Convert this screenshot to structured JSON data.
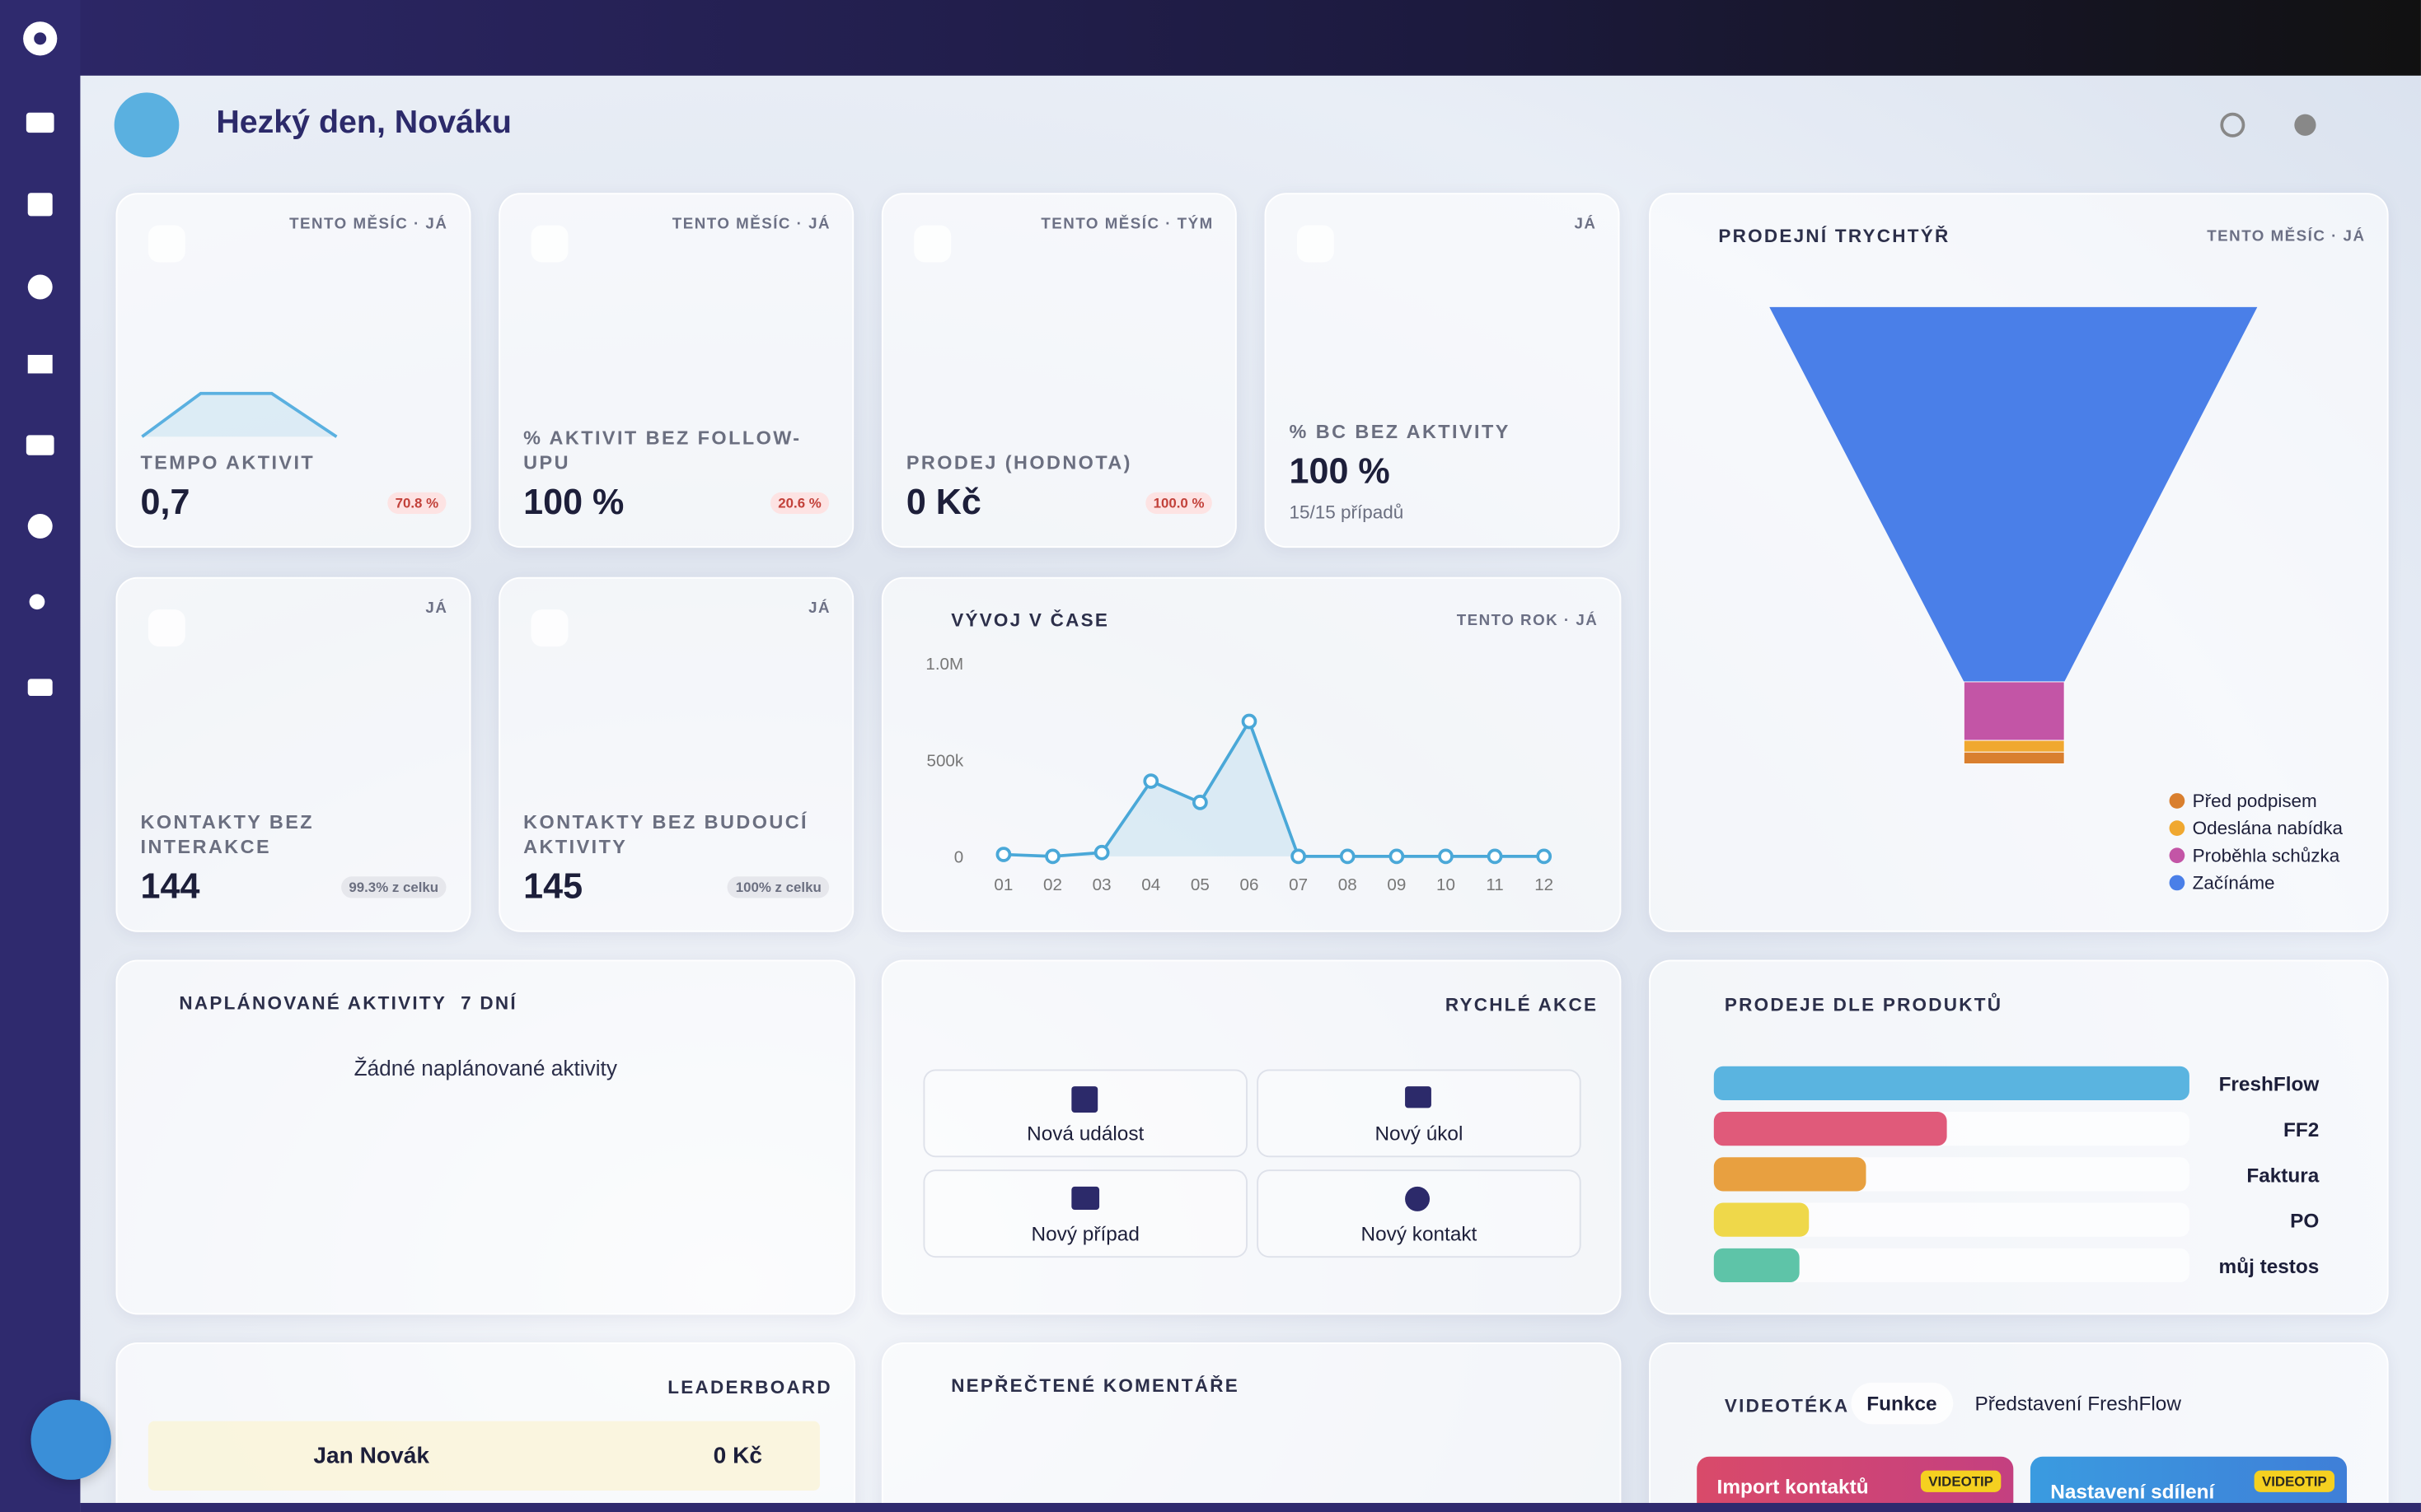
{
  "header": {
    "greeting": "Hezký den, Nováku"
  },
  "kpis": [
    {
      "scope": "TENTO MĚSÍC · JÁ",
      "label": "TEMPO AKTIVIT",
      "value": "0,7",
      "change": "70.8 %"
    },
    {
      "scope": "TENTO MĚSÍC · JÁ",
      "label": "% AKTIVIT BEZ FOLLOW-UPU",
      "value": "100 %",
      "change": "20.6 %"
    },
    {
      "scope": "TENTO MĚSÍC · TÝM",
      "label": "PRODEJ (HODNOTA)",
      "value": "0 Kč",
      "change": "100.0 %"
    },
    {
      "scope": "JÁ",
      "label": "% BC BEZ AKTIVITY",
      "value": "100 %",
      "detail": "15/15 případů"
    },
    {
      "scope": "JÁ",
      "label": "KONTAKTY BEZ INTERAKCE",
      "value": "144",
      "share": "99.3% z celku"
    },
    {
      "scope": "JÁ",
      "label": "KONTAKTY BEZ BUDOUCÍ AKTIVITY",
      "value": "145",
      "share": "100% z celku"
    }
  ],
  "funnel": {
    "title": "PRODEJNÍ TRYCHTÝŘ",
    "scope": "TENTO MĚSÍC · JÁ",
    "stages": [
      {
        "name": "Začínáme",
        "color": "#4a7fe8",
        "value": 32
      },
      {
        "name": "Proběhla schůzka",
        "color": "#c355a6",
        "value": 5
      },
      {
        "name": "Odeslána nabídka",
        "color": "#f0a830",
        "value": 1
      },
      {
        "name": "Před podpisem",
        "color": "#d97f2e",
        "value": 1
      }
    ]
  },
  "trend": {
    "title": "VÝVOJ V ČASE",
    "scope": "TENTO ROK · JÁ",
    "x": [
      "01",
      "02",
      "03",
      "04",
      "05",
      "06",
      "07",
      "08",
      "09",
      "10",
      "11",
      "12"
    ],
    "values": [
      10000,
      0,
      20000,
      390000,
      280000,
      700000,
      0,
      0,
      0,
      0,
      0,
      0
    ],
    "color": "#4aa8d8",
    "ylim": [
      0,
      1000000
    ],
    "yticks": [
      0,
      {
        "value": 500000,
        "label": "500k"
      },
      {
        "value": 1000000,
        "label": "1.0M"
      }
    ]
  },
  "planned": {
    "title": "NAPLÁNOVANÉ AKTIVITY",
    "range": "7 DNÍ",
    "empty": "Žádné naplánované aktivity"
  },
  "quick_actions": {
    "title": "RYCHLÉ AKCE",
    "actions": [
      "Nová událost",
      "Nový úkol",
      "Nový případ",
      "Nový kontakt"
    ]
  },
  "products": {
    "title": "PRODEJE DLE PRODUKTŮ",
    "xlim": [
      0,
      100
    ],
    "items": [
      {
        "name": "FreshFlow",
        "color": "#5ab4e0",
        "value": 100
      },
      {
        "name": "FF2",
        "color": "#e05a7a",
        "value": 49
      },
      {
        "name": "Faktura",
        "color": "#e8a040",
        "value": 32
      },
      {
        "name": "PO",
        "color": "#efd84a",
        "value": 20
      },
      {
        "name": "můj testos",
        "color": "#5ec4a8",
        "value": 18
      }
    ]
  },
  "leaderboard": {
    "title": "LEADERBOARD",
    "rows": [
      {
        "name": "Jan Novák",
        "amount": "0 Kč"
      }
    ]
  },
  "comments": {
    "title": "NEPŘEČTENÉ KOMENTÁŘE"
  },
  "videos": {
    "title": "VIDEOTÉKA",
    "tabs": [
      "Funkce",
      "Představení FreshFlow"
    ],
    "items": [
      {
        "title": "Import kontaktů",
        "badge": "VIDEOTIP"
      },
      {
        "title": "Nastavení sdílení",
        "badge": "VIDEOTIP"
      }
    ]
  }
}
